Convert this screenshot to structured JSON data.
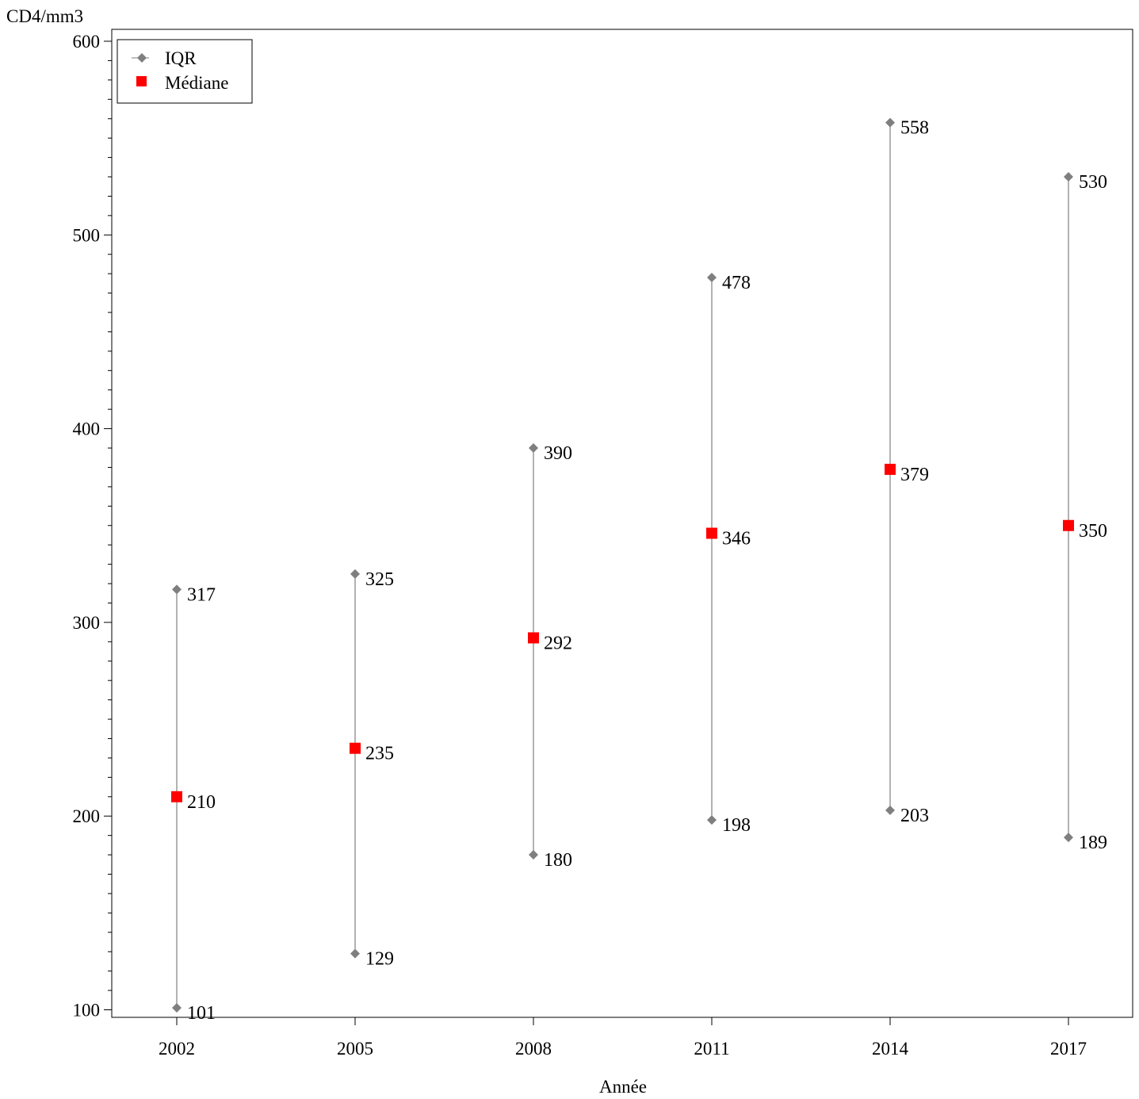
{
  "chart_data": {
    "type": "scatter",
    "xlabel": "Année",
    "ylabel": "CD4/mm3",
    "ylim": [
      96,
      620
    ],
    "yticks": [
      100,
      200,
      300,
      400,
      500,
      600
    ],
    "categories": [
      "2002",
      "2005",
      "2008",
      "2011",
      "2014",
      "2017"
    ],
    "series": [
      {
        "name": "IQR",
        "marker": "diamond",
        "color": "#7f7f7f",
        "low": [
          101,
          129,
          180,
          198,
          203,
          189
        ],
        "high": [
          317,
          325,
          390,
          478,
          558,
          530
        ]
      },
      {
        "name": "Médiane",
        "marker": "square",
        "color": "#ff0000",
        "values": [
          210,
          235,
          292,
          346,
          379,
          350
        ]
      }
    ],
    "grid": false,
    "legend_position": "top-left"
  }
}
